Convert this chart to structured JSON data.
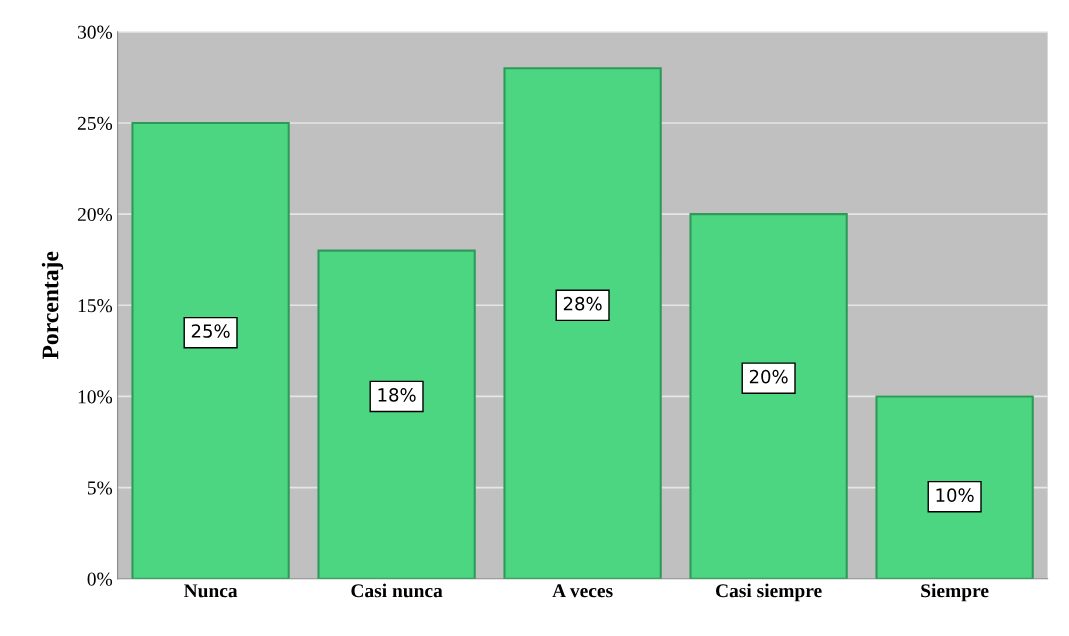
{
  "chart_data": {
    "type": "bar",
    "ylabel": "Porcentaje",
    "categories": [
      "Nunca",
      "Casi nunca",
      "A veces",
      "Casi siempre",
      "Siempre"
    ],
    "values": [
      25,
      18,
      28,
      20,
      10
    ],
    "value_labels": [
      "25%",
      "18%",
      "28%",
      "20%",
      "10%"
    ],
    "color": "#4cd681",
    "ylim": [
      0,
      30
    ],
    "yticks": [
      {
        "value": 0,
        "label": "0%"
      },
      {
        "value": 5,
        "label": "5%"
      },
      {
        "value": 10,
        "label": "10%"
      },
      {
        "value": 15,
        "label": "15%"
      },
      {
        "value": 20,
        "label": "20%"
      },
      {
        "value": 25,
        "label": "25%"
      },
      {
        "value": 30,
        "label": "30%"
      }
    ],
    "grid": "y"
  }
}
